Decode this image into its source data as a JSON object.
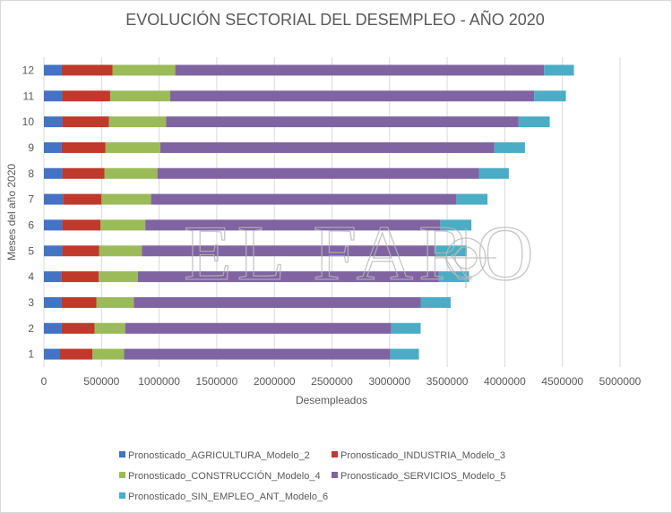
{
  "chart_data": {
    "type": "bar",
    "orientation": "horizontal",
    "stacked": true,
    "title": "EVOLUCIÓN SECTORIAL DEL DESEMPLEO - AÑO 2020",
    "xlabel": "Desempleados",
    "ylabel": "Meses del año 2020",
    "categories": [
      "1",
      "2",
      "3",
      "4",
      "5",
      "6",
      "7",
      "8",
      "9",
      "10",
      "11",
      "12"
    ],
    "xlim": [
      0,
      5000000
    ],
    "xticks": [
      "0",
      "500000",
      "1000000",
      "1500000",
      "2000000",
      "2500000",
      "3000000",
      "3500000",
      "4000000",
      "4500000",
      "5000000"
    ],
    "grid": true,
    "legend_position": "bottom",
    "watermark": "EL FARO",
    "series": [
      {
        "name": "Pronosticado_AGRICULTURA_Modelo_2",
        "color": "#4472c4",
        "values": [
          140000,
          155000,
          155000,
          150000,
          160000,
          160000,
          165000,
          160000,
          155000,
          160000,
          160000,
          155000
        ]
      },
      {
        "name": "Pronosticado_INDUSTRIA_Modelo_3",
        "color": "#c0392b",
        "values": [
          280000,
          285000,
          300000,
          325000,
          320000,
          330000,
          335000,
          365000,
          380000,
          405000,
          415000,
          440000
        ]
      },
      {
        "name": "Pronosticado_CONSTRUCCIÓN_Modelo_4",
        "color": "#9bbb59",
        "values": [
          275000,
          265000,
          325000,
          340000,
          370000,
          390000,
          430000,
          460000,
          475000,
          495000,
          520000,
          545000
        ]
      },
      {
        "name": "Pronosticado_SERVICIOS_Modelo_5",
        "color": "#8064a2",
        "values": [
          2310000,
          2310000,
          2490000,
          2610000,
          2550000,
          2560000,
          2650000,
          2790000,
          2900000,
          3060000,
          3160000,
          3200000
        ]
      },
      {
        "name": "Pronosticado_SIN_EMPLEO_ANT_Modelo_6",
        "color": "#4bacc6",
        "values": [
          250000,
          255000,
          260000,
          265000,
          270000,
          270000,
          270000,
          260000,
          265000,
          270000,
          275000,
          260000
        ]
      }
    ]
  }
}
